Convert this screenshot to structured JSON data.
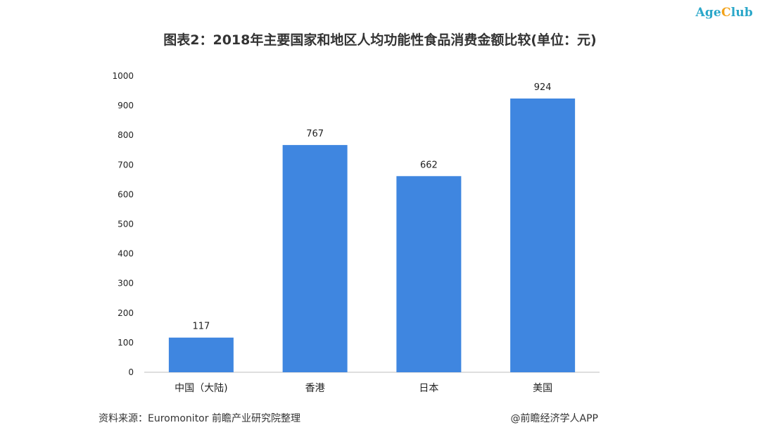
{
  "brand": {
    "part_a": "Age",
    "part_b": "C",
    "part_c": "lub",
    "color_primary": "#2aa7c9",
    "color_accent": "#f2a21a"
  },
  "chart_data": {
    "type": "bar",
    "title": "图表2：2018年主要国家和地区人均功能性食品消费金额比较(单位：元)",
    "categories": [
      "中国（大陆)",
      "香港",
      "日本",
      "美国"
    ],
    "values": [
      117,
      767,
      662,
      924
    ],
    "data_labels": [
      "117",
      "767",
      "662",
      "924"
    ],
    "y_ticks": [
      "0",
      "100",
      "200",
      "300",
      "400",
      "500",
      "600",
      "700",
      "800",
      "900",
      "1000"
    ],
    "ylim": [
      0,
      1000
    ],
    "bar_color": "#3f86e0",
    "grid": false,
    "legend": "none"
  },
  "footer": {
    "source": "资料来源：Euromonitor 前瞻产业研究院整理",
    "credit": "@前瞻经济学人APP"
  }
}
